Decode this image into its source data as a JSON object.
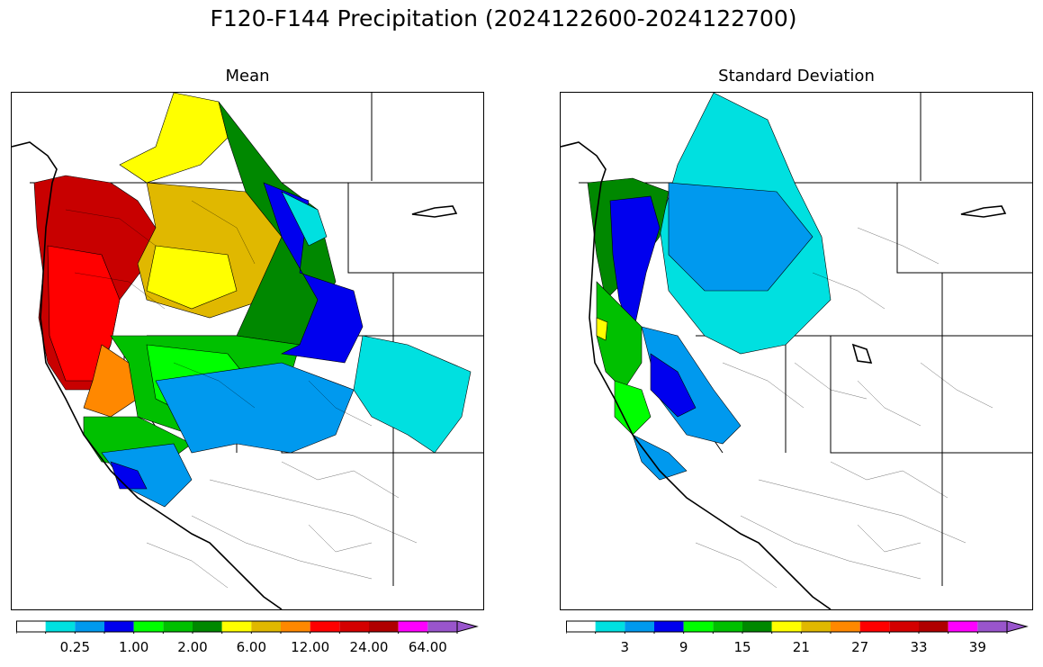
{
  "title": "F120-F144 Precipitation (2024122600-2024122700)",
  "panels": [
    {
      "id": "mean",
      "title": "Mean",
      "colorbar": {
        "ticks": [
          "0.25",
          "1.00",
          "2.00",
          "6.00",
          "12.00",
          "24.00",
          "64.00"
        ],
        "tick_slots": [
          1,
          3,
          5,
          7,
          9,
          11,
          13
        ],
        "extend": "max"
      }
    },
    {
      "id": "std",
      "title": "Standard Deviation",
      "colorbar": {
        "ticks": [
          "3",
          "9",
          "15",
          "21",
          "27",
          "33",
          "39"
        ],
        "tick_slots": [
          1,
          3,
          5,
          7,
          9,
          11,
          13
        ],
        "extend": "max"
      }
    }
  ],
  "palette": [
    "#ffffff",
    "#00e0e0",
    "#0099ee",
    "#0000ee",
    "#00ff00",
    "#00c000",
    "#008800",
    "#ffff00",
    "#e0b800",
    "#ff8800",
    "#ff0000",
    "#d40000",
    "#b00000",
    "#ff00ff",
    "#9955cc"
  ],
  "colors": {
    "coast": "#000000",
    "border": "#000000",
    "basin_outline": "#000000"
  }
}
